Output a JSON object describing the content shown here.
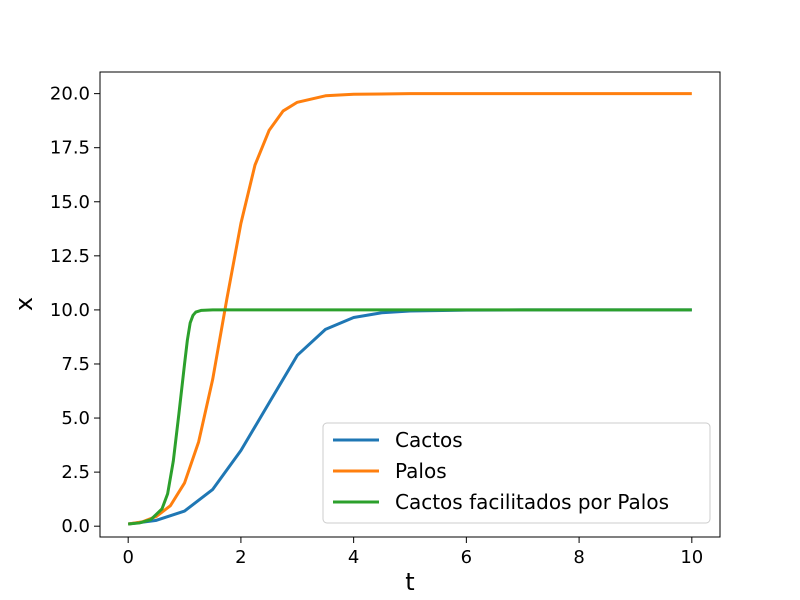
{
  "chart_data": {
    "type": "line",
    "title": "",
    "xlabel": "t",
    "ylabel": "x",
    "xlim": [
      -0.5,
      10.5
    ],
    "ylim": [
      -0.5,
      21.0
    ],
    "xticks": [
      0,
      2,
      4,
      6,
      8,
      10
    ],
    "xtick_labels": [
      "0",
      "2",
      "4",
      "6",
      "8",
      "10"
    ],
    "yticks": [
      0.0,
      2.5,
      5.0,
      7.5,
      10.0,
      12.5,
      15.0,
      17.5,
      20.0
    ],
    "ytick_labels": [
      "0.0",
      "2.5",
      "5.0",
      "7.5",
      "10.0",
      "12.5",
      "15.0",
      "17.5",
      "20.0"
    ],
    "grid": false,
    "legend_position": "lower-right",
    "series": [
      {
        "name": "Cactos",
        "color": "#1f77b4",
        "x": [
          0,
          0.5,
          1.0,
          1.5,
          2.0,
          2.5,
          3.0,
          3.5,
          4.0,
          4.5,
          5.0,
          6.0,
          7.0,
          8.0,
          10.0
        ],
        "y": [
          0.1,
          0.27,
          0.7,
          1.7,
          3.5,
          5.7,
          7.9,
          9.1,
          9.65,
          9.87,
          9.95,
          9.99,
          10.0,
          10.0,
          10.0
        ]
      },
      {
        "name": "Palos",
        "color": "#ff7f0e",
        "x": [
          0,
          0.25,
          0.5,
          0.75,
          1.0,
          1.25,
          1.5,
          1.75,
          2.0,
          2.25,
          2.5,
          2.75,
          3.0,
          3.5,
          4.0,
          5.0,
          6.0,
          8.0,
          10.0
        ],
        "y": [
          0.1,
          0.2,
          0.45,
          0.95,
          2.0,
          3.9,
          6.8,
          10.5,
          14.0,
          16.7,
          18.3,
          19.2,
          19.6,
          19.9,
          19.97,
          20.0,
          20.0,
          20.0,
          20.0
        ]
      },
      {
        "name": "Cactos facilitados por Palos",
        "color": "#2ca02c",
        "x": [
          0,
          0.2,
          0.4,
          0.6,
          0.7,
          0.8,
          0.9,
          1.0,
          1.05,
          1.1,
          1.15,
          1.2,
          1.3,
          1.5,
          2.0,
          4.0,
          6.0,
          8.0,
          10.0
        ],
        "y": [
          0.1,
          0.15,
          0.3,
          0.8,
          1.5,
          3.0,
          5.2,
          7.5,
          8.6,
          9.4,
          9.75,
          9.9,
          9.98,
          10.0,
          10.0,
          10.0,
          10.0,
          10.0,
          10.0
        ]
      }
    ]
  }
}
